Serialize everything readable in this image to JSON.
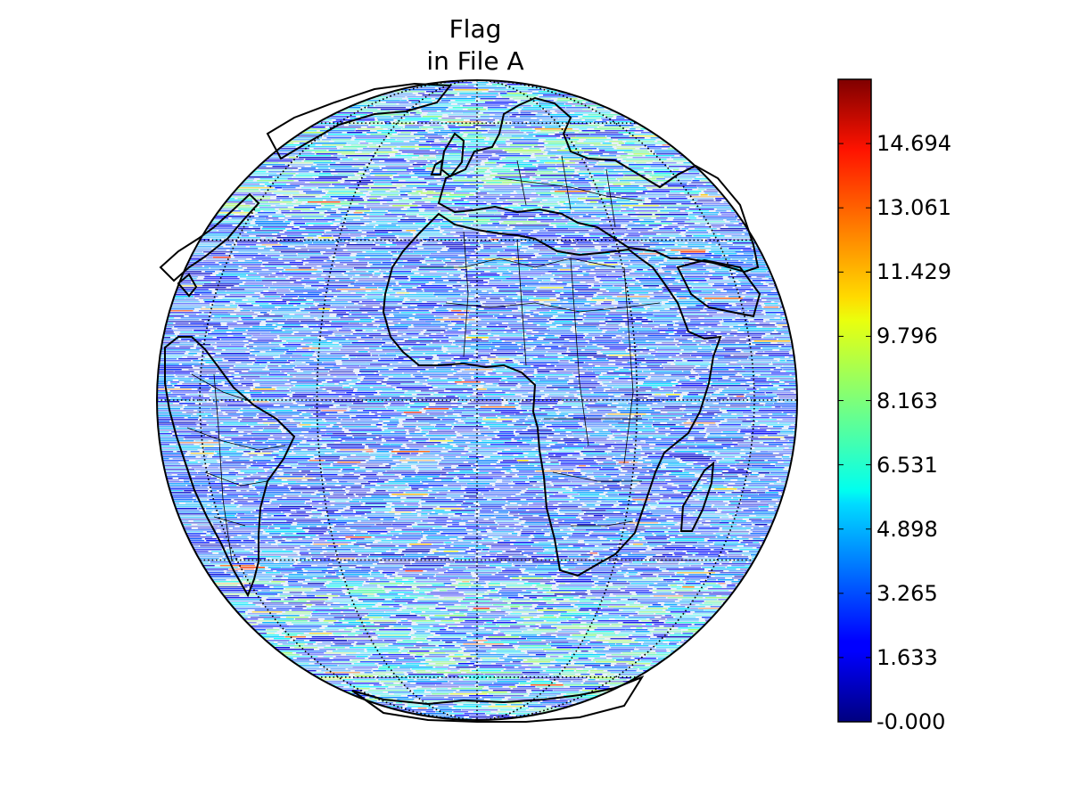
{
  "map": {
    "title_line1": "Flag",
    "title_line2": "in File A",
    "projection": "orthographic",
    "center": {
      "lon": 0,
      "lat": 0
    },
    "layers": [
      "coastlines",
      "country-borders",
      "graticule",
      "flag-field"
    ],
    "graticule_style": "dotted"
  },
  "colorbar": {
    "colormap": "jet",
    "range": [
      0.0,
      16.327
    ],
    "ticks": [
      {
        "value": 14.694,
        "label": "14.694"
      },
      {
        "value": 13.061,
        "label": "13.061"
      },
      {
        "value": 11.429,
        "label": "11.429"
      },
      {
        "value": 9.796,
        "label": "9.796"
      },
      {
        "value": 8.163,
        "label": "8.163"
      },
      {
        "value": 6.531,
        "label": "6.531"
      },
      {
        "value": 4.898,
        "label": "4.898"
      },
      {
        "value": 3.265,
        "label": "3.265"
      },
      {
        "value": 1.633,
        "label": "1.633"
      },
      {
        "value": 0.0,
        "label": "-0.000"
      }
    ]
  }
}
